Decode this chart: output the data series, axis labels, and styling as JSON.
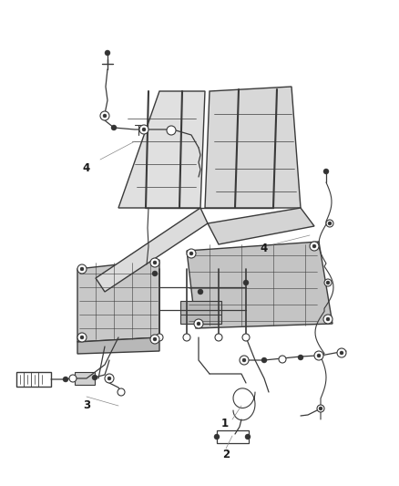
{
  "background_color": "#ffffff",
  "line_color": "#3a3a3a",
  "label_color": "#1a1a1a",
  "label_fontsize": 8.5,
  "figsize": [
    4.38,
    5.33
  ],
  "dpi": 100,
  "seat_fill": "#e8e8e8",
  "frame_fill": "#d0d0d0",
  "seat_dark": "#c0c0c0"
}
